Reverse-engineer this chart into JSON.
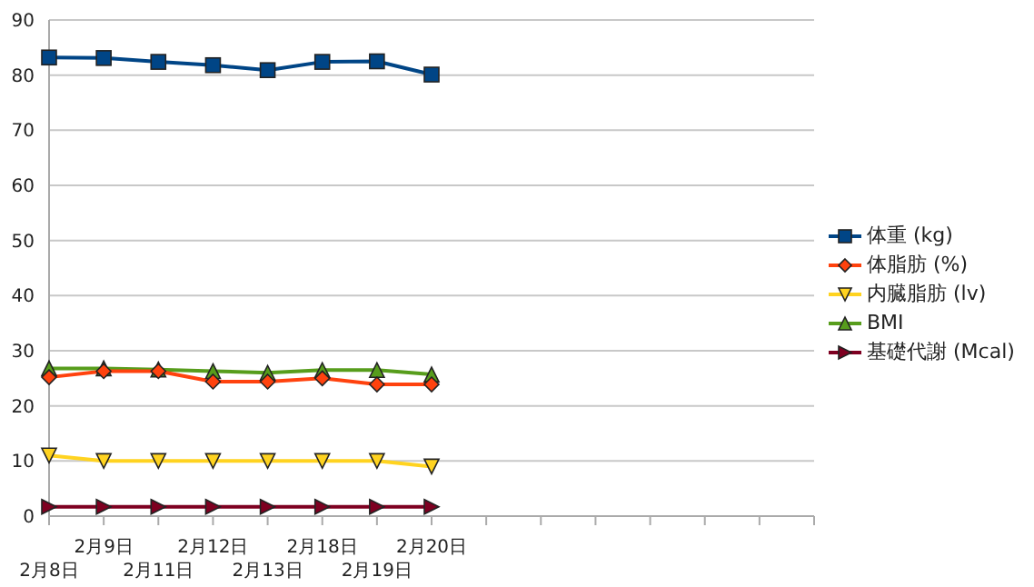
{
  "chart_data": {
    "type": "line",
    "categories": [
      "2月8日",
      "2月9日",
      "2月11日",
      "2月12日",
      "2月13日",
      "2月18日",
      "2月19日",
      "2月20日",
      null,
      null,
      null,
      null,
      null,
      null,
      null
    ],
    "series": [
      {
        "name": "体重 (kg)",
        "color": "#004586",
        "marker": "square",
        "values": [
          83.2,
          83.1,
          82.4,
          81.8,
          80.9,
          82.4,
          82.5,
          80.1,
          null,
          null,
          null,
          null,
          null,
          null,
          null
        ]
      },
      {
        "name": "体脂肪 (%)",
        "color": "#ff420e",
        "marker": "diamond",
        "values": [
          25.2,
          26.3,
          26.3,
          24.4,
          24.4,
          25.0,
          23.9,
          23.9,
          null,
          null,
          null,
          null,
          null,
          null,
          null
        ]
      },
      {
        "name": "内臓脂肪 (lv)",
        "color": "#ffd320",
        "marker": "triangle-down",
        "values": [
          11,
          10,
          10,
          10,
          10,
          10,
          10,
          9,
          null,
          null,
          null,
          null,
          null,
          null,
          null
        ]
      },
      {
        "name": "BMI",
        "color": "#579d1c",
        "marker": "triangle",
        "values": [
          26.8,
          26.8,
          26.6,
          26.3,
          26.0,
          26.5,
          26.5,
          25.7,
          null,
          null,
          null,
          null,
          null,
          null,
          null
        ]
      },
      {
        "name": "基礎代謝 (Mcal)",
        "color": "#7e0021",
        "marker": "triangle-right",
        "values": [
          1.7,
          1.7,
          1.7,
          1.7,
          1.7,
          1.7,
          1.7,
          1.7,
          null,
          null,
          null,
          null,
          null,
          null,
          null
        ]
      }
    ],
    "ylim": [
      0,
      90
    ],
    "yticks": [
      0,
      10,
      20,
      30,
      40,
      50,
      60,
      70,
      80,
      90
    ],
    "grid": "y",
    "legend": "right"
  }
}
